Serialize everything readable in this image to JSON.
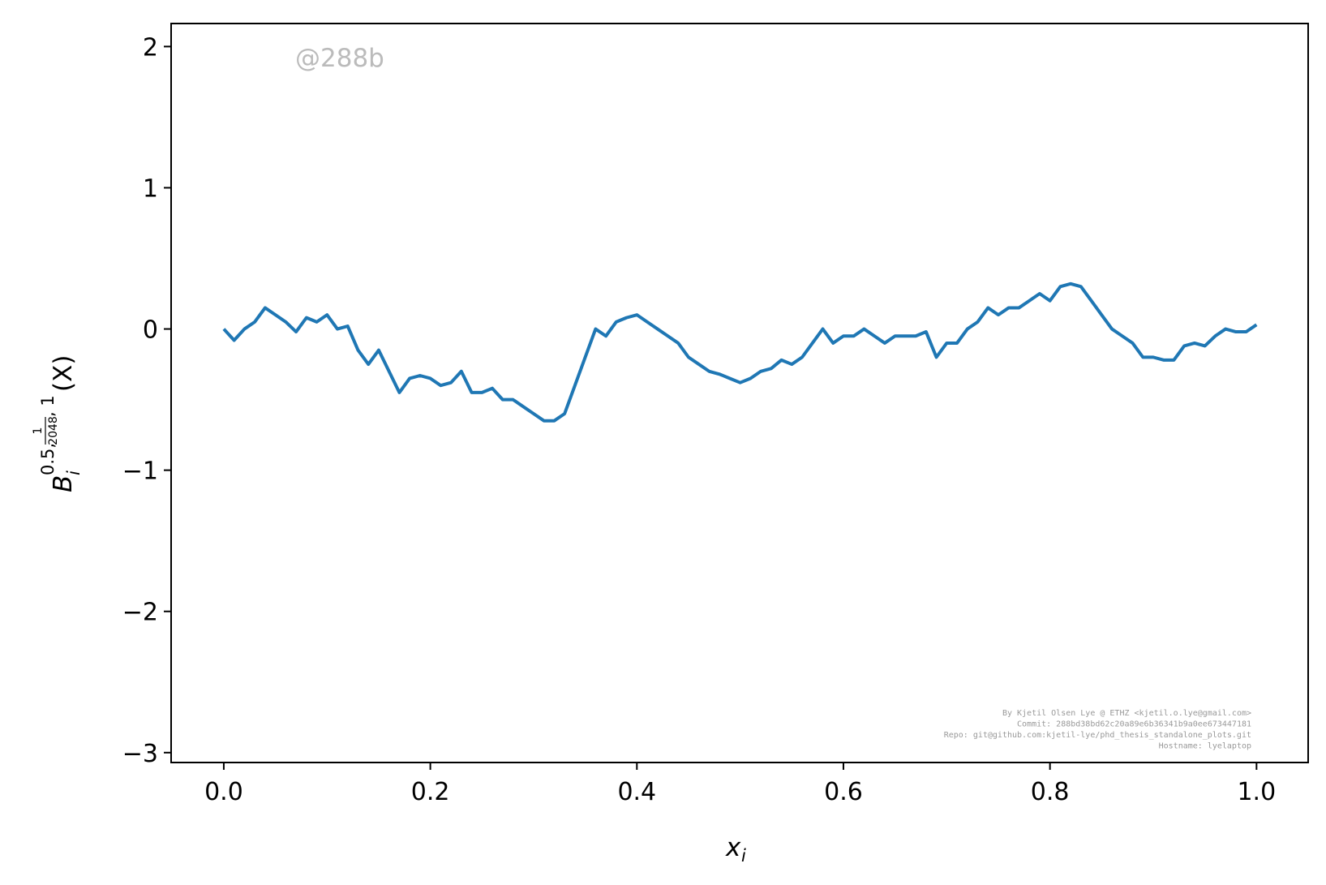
{
  "chart_data": {
    "type": "line",
    "ylabel": {
      "base": "B",
      "sub": "i",
      "sup": "0.5,",
      "frac_num": "1",
      "frac_den": "2048",
      "sup_end": ", 1",
      "arg": "(X)"
    },
    "xlabel": {
      "base": "x",
      "sub": "i"
    },
    "watermark": "@288b",
    "footer": [
      "By Kjetil Olsen Lye @ ETHZ <kjetil.o.lye@gmail.com>",
      "Commit: 288bd38bd62c20a89e6b36341b9a0ee673447181",
      "Repo: git@github.com:kjetil-lye/phd_thesis_standalone_plots.git",
      "Hostname: lyelaptop"
    ],
    "x": [
      0,
      0.01,
      0.02,
      0.03,
      0.04,
      0.05,
      0.06,
      0.07,
      0.08,
      0.09,
      0.1,
      0.11,
      0.12,
      0.13,
      0.14,
      0.15,
      0.16,
      0.17,
      0.18,
      0.19,
      0.2,
      0.21,
      0.22,
      0.23,
      0.24,
      0.25,
      0.26,
      0.27,
      0.28,
      0.29,
      0.3,
      0.31,
      0.32,
      0.33,
      0.34,
      0.35,
      0.36,
      0.37,
      0.38,
      0.39,
      0.4,
      0.41,
      0.42,
      0.43,
      0.44,
      0.45,
      0.46,
      0.47,
      0.48,
      0.49,
      0.5,
      0.51,
      0.52,
      0.53,
      0.54,
      0.55,
      0.56,
      0.57,
      0.58,
      0.59,
      0.6,
      0.61,
      0.62,
      0.63,
      0.64,
      0.65,
      0.66,
      0.67,
      0.68,
      0.69,
      0.7,
      0.71,
      0.72,
      0.73,
      0.74,
      0.75,
      0.76,
      0.77,
      0.78,
      0.79,
      0.8,
      0.81,
      0.82,
      0.83,
      0.84,
      0.85,
      0.86,
      0.87,
      0.88,
      0.89,
      0.9,
      0.91,
      0.92,
      0.93,
      0.94,
      0.95,
      0.96,
      0.97,
      0.98,
      0.99,
      1.0
    ],
    "series": [
      {
        "color": "#1f77b4",
        "values": [
          0,
          -0.08,
          0,
          0.05,
          0.15,
          0.1,
          0.05,
          -0.02,
          0.08,
          0.05,
          0.1,
          0,
          0.02,
          -0.15,
          -0.25,
          -0.15,
          -0.3,
          -0.45,
          -0.35,
          -0.33,
          -0.35,
          -0.4,
          -0.38,
          -0.3,
          -0.45,
          -0.45,
          -0.42,
          -0.5,
          -0.5,
          -0.55,
          -0.6,
          -0.65,
          -0.65,
          -0.6,
          -0.4,
          -0.2,
          0,
          -0.05,
          0.05,
          0.08,
          0.1,
          0.05,
          0,
          -0.05,
          -0.1,
          -0.2,
          -0.25,
          -0.3,
          -0.32,
          -0.35,
          -0.38,
          -0.35,
          -0.3,
          -0.28,
          -0.22,
          -0.25,
          -0.2,
          -0.1,
          0,
          -0.1,
          -0.05,
          -0.05,
          0,
          -0.05,
          -0.1,
          -0.05,
          -0.05,
          -0.05,
          -0.02,
          -0.2,
          -0.1,
          -0.1,
          0,
          0.05,
          0.15,
          0.1,
          0.15,
          0.15,
          0.2,
          0.25,
          0.2,
          0.3,
          0.32,
          0.3,
          0.2,
          0.1,
          0,
          -0.05,
          -0.1,
          -0.2,
          -0.2,
          -0.22,
          -0.22,
          -0.12,
          -0.1,
          -0.12,
          -0.05,
          0,
          -0.02,
          -0.02,
          0.03
        ]
      }
    ],
    "xlim": [
      -0.051,
      1.05
    ],
    "ylim": [
      -3.07,
      2.163
    ],
    "xticks": [
      {
        "value": 0,
        "label": "0.0"
      },
      0.2,
      0.4,
      0.6,
      0.8,
      {
        "value": 1,
        "label": "1.0"
      }
    ],
    "yticks": [
      {
        "value": -3,
        "label": "−3"
      },
      {
        "value": -2,
        "label": "−2"
      },
      {
        "value": -1,
        "label": "−1"
      },
      0,
      1,
      2
    ]
  }
}
